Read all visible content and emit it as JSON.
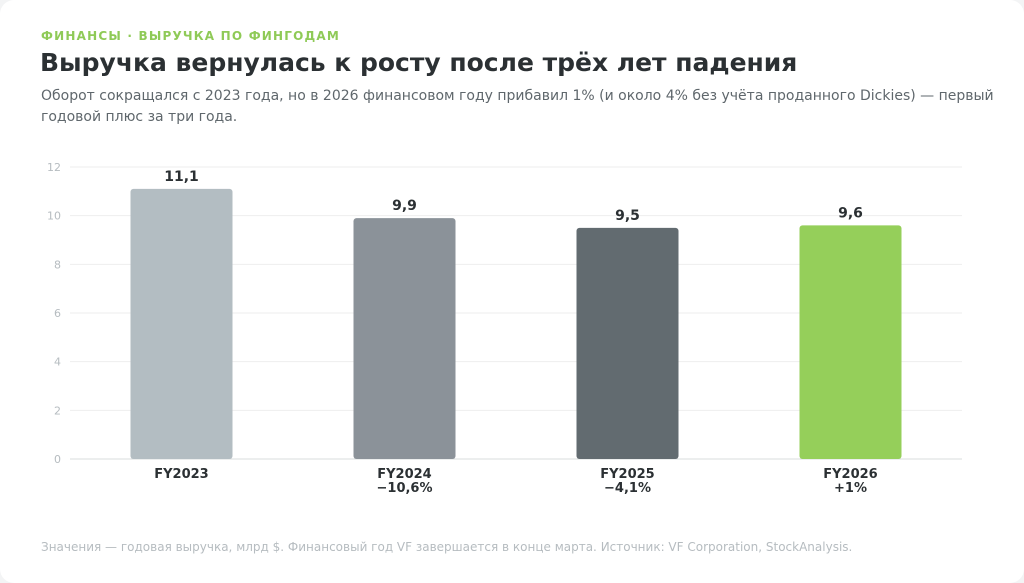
{
  "header": {
    "kicker": "ФИНАНСЫ · ВЫРУЧКА ПО ФИНГОДАМ",
    "title": "Выручка вернулась к росту после трёх лет падения",
    "subtitle": "Оборот сокращался с 2023 года, но в 2026 финансовом году прибавил 1% (и около 4% без учёта проданного Dickies) — первый годовой плюс за три года."
  },
  "footnote": "Значения — годовая выручка, млрд $. Финансовый год VF завершается в конце марта. Источник: VF Corporation, StockAnalysis.",
  "colors": {
    "accent": "#8fca57",
    "bars": [
      "#b3bdc2",
      "#8b9299",
      "#626b70",
      "#95cf5a"
    ],
    "grid": "#eeeeee",
    "tick": "#b6bcc0",
    "label": "#2b3033"
  },
  "chart_data": {
    "type": "bar",
    "categories": [
      "FY2023",
      "FY2024",
      "FY2025",
      "FY2026"
    ],
    "values": [
      11.1,
      9.9,
      9.5,
      9.6
    ],
    "value_labels": [
      "11,1",
      "9,9",
      "9,5",
      "9,6"
    ],
    "change_labels": [
      "",
      "−10,6%",
      "−4,1%",
      "+1%"
    ],
    "ylim": [
      0,
      12
    ],
    "yticks": [
      0,
      2,
      4,
      6,
      8,
      10,
      12
    ],
    "grid": true,
    "legend": "none"
  }
}
